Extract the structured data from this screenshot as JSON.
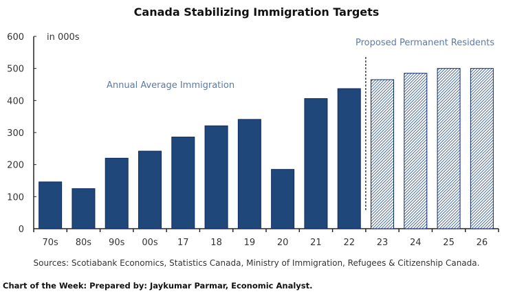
{
  "chart_data": {
    "type": "bar",
    "title": "Canada Stabilizing Immigration Targets",
    "unit_label": "in 000s",
    "categories": [
      "70s",
      "80s",
      "90s",
      "00s",
      "17",
      "18",
      "19",
      "20",
      "21",
      "22",
      "23",
      "24",
      "25",
      "26"
    ],
    "values": [
      146,
      125,
      220,
      242,
      286,
      321,
      341,
      185,
      406,
      437,
      465,
      485,
      500,
      500
    ],
    "proposed_from_index": 10,
    "ylim": [
      0,
      600
    ],
    "yticks": [
      0,
      100,
      200,
      300,
      400,
      500,
      600
    ],
    "grid": false,
    "annotations": [
      "Annual Average Immigration",
      "Proposed Permanent Residents"
    ],
    "colors": {
      "bar": "#1f477a",
      "bar_edge": "#0d2a63",
      "hatch": "#1f477a",
      "annotation": "#5a7aa8"
    }
  },
  "source": "Sources: Scotiabank Economics, Statistics Canada, Ministry of Immigration, Refugees & Citizenship Canada.",
  "footer": "Chart of the Week: Prepared by: Jaykumar Parmar, Economic Analyst."
}
